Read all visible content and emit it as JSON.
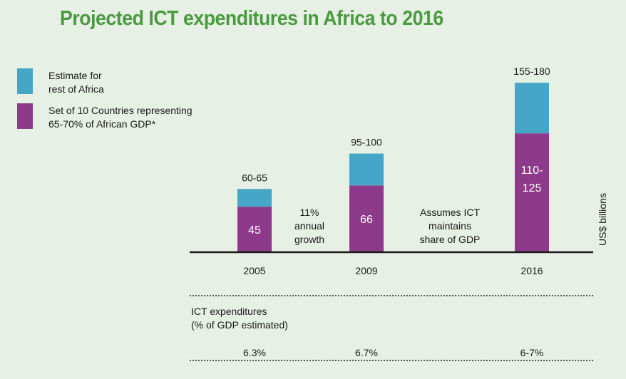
{
  "title": "Projected ICT expenditures in Africa to 2016",
  "colors": {
    "title": "#4a9a3f",
    "rest": "#45a6c8",
    "countries": "#8e3a8a",
    "background": "#e6f0e4"
  },
  "legend": [
    {
      "label": "Estimate for\nrest of Africa",
      "color": "#45a6c8"
    },
    {
      "label": "Set of 10 Countries representing\n65-70% of African GDP*",
      "color": "#8e3a8a"
    }
  ],
  "chart_data": {
    "type": "bar",
    "stacked": true,
    "categories": [
      "2005",
      "2009",
      "2016"
    ],
    "series": [
      {
        "name": "Set of 10 Countries representing 65-70% of African GDP*",
        "values": [
          45,
          66,
          117.5
        ],
        "labels": [
          "45",
          "66",
          "110-\n125"
        ]
      },
      {
        "name": "Estimate for rest of Africa",
        "values": [
          17.5,
          31.5,
          50
        ],
        "labels": []
      }
    ],
    "total_labels": [
      "60-65",
      "95-100",
      "155-180"
    ],
    "ylabel": "US$ billions",
    "annotations": [
      {
        "text": "11%\nannual\ngrowth",
        "between": [
          "2005",
          "2009"
        ]
      },
      {
        "text": "Assumes ICT\nmaintains\nshare of GDP",
        "between": [
          "2009",
          "2016"
        ]
      }
    ]
  },
  "gdp_share": {
    "label": "ICT expenditures\n(% of GDP estimated)",
    "values": [
      "6.3%",
      "6.7%",
      "6-7%"
    ]
  }
}
